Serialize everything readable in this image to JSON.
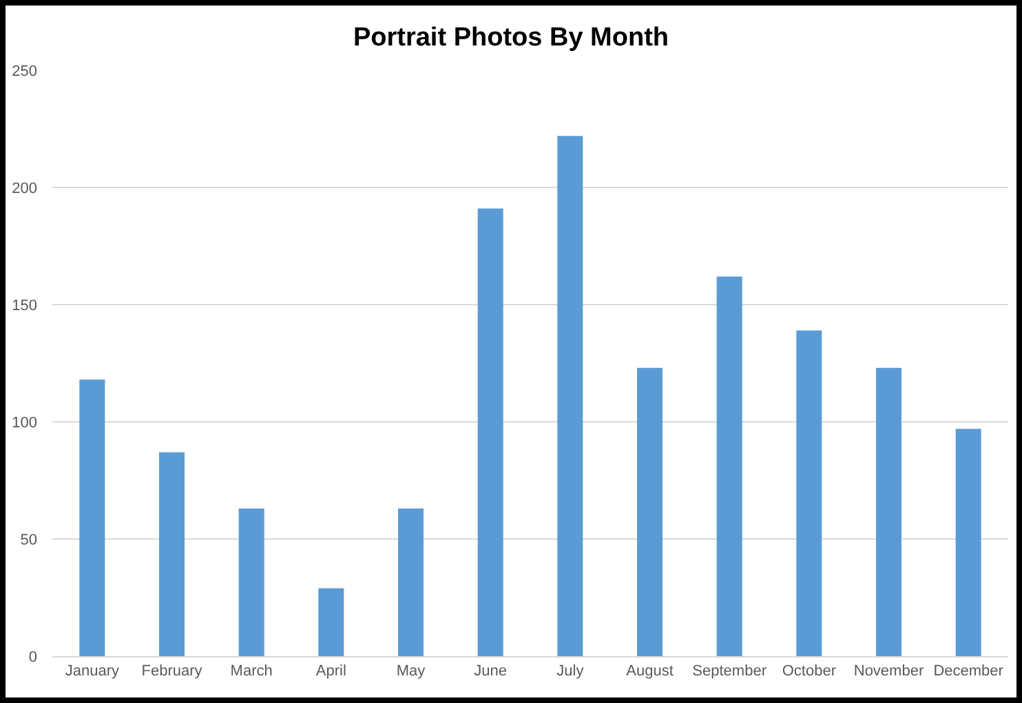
{
  "chart_data": {
    "type": "bar",
    "title": "Portrait Photos By Month",
    "categories": [
      "January",
      "February",
      "March",
      "April",
      "May",
      "June",
      "July",
      "August",
      "September",
      "October",
      "November",
      "December"
    ],
    "values": [
      118,
      87,
      63,
      29,
      63,
      191,
      222,
      123,
      162,
      139,
      123,
      97
    ],
    "color": "#5b9bd5",
    "ylim": [
      0,
      250
    ],
    "yticks": [
      0,
      50,
      100,
      150,
      200,
      250
    ],
    "grid": "y"
  }
}
